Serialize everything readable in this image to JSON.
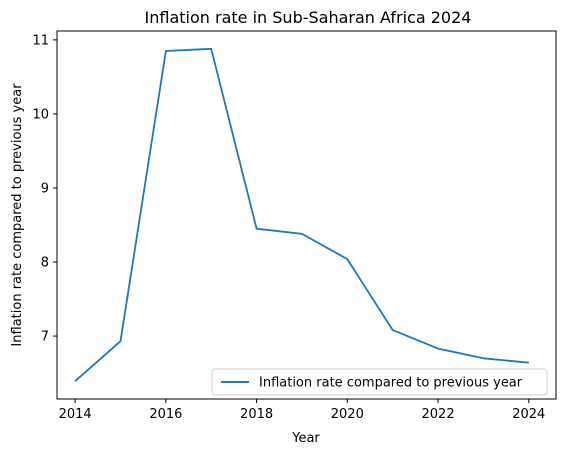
{
  "chart_data": {
    "type": "line",
    "title": "Inflation rate in Sub-Saharan Africa 2024",
    "xlabel": "Year",
    "ylabel": "Inflation rate compared to previous year",
    "xlim": [
      2013.6,
      2024.6
    ],
    "ylim": [
      6.15,
      11.12
    ],
    "xticks": [
      2014,
      2016,
      2018,
      2020,
      2022,
      2024
    ],
    "yticks": [
      7,
      8,
      9,
      10,
      11
    ],
    "grid": false,
    "legend_position": "lower-right",
    "series": [
      {
        "name": "Inflation rate compared to previous year",
        "color": "#1f77b4",
        "x": [
          2014,
          2015,
          2016,
          2017,
          2018,
          2019,
          2020,
          2021,
          2022,
          2023,
          2024
        ],
        "y": [
          6.39,
          6.93,
          10.85,
          10.88,
          8.45,
          8.38,
          8.04,
          7.08,
          6.83,
          6.7,
          6.64
        ]
      }
    ]
  }
}
